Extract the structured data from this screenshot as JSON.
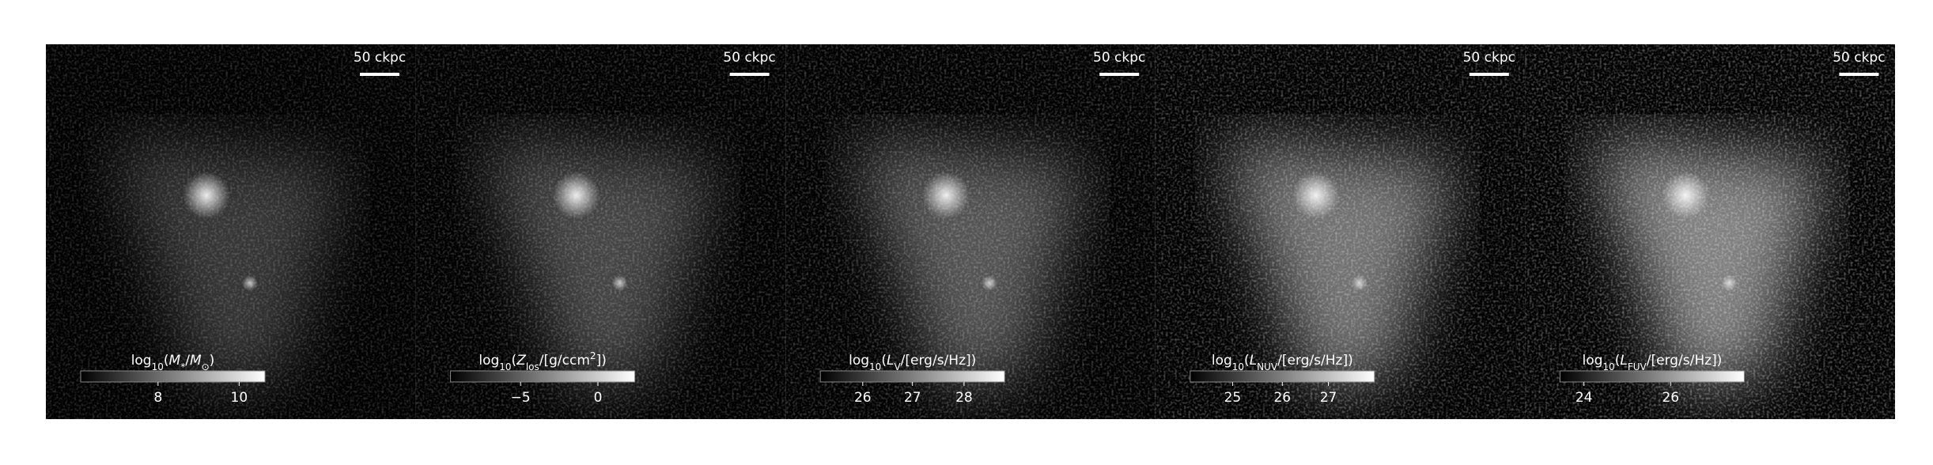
{
  "panels": [
    {
      "scale_bar": "50 ckpc",
      "colorbar": {
        "label": [
          {
            "t": "log"
          },
          {
            "t": "10",
            "sub": true
          },
          {
            "t": "("
          },
          {
            "t": "M",
            "it": true
          },
          {
            "t": "*",
            "sub": true
          },
          {
            "t": "/"
          },
          {
            "t": "M",
            "it": true
          },
          {
            "t": "⊙",
            "sub": true
          },
          {
            "t": ")"
          }
        ],
        "ticks": [
          "8",
          "10"
        ]
      }
    },
    {
      "scale_bar": "50 ckpc",
      "colorbar": {
        "label": [
          {
            "t": "log"
          },
          {
            "t": "10",
            "sub": true
          },
          {
            "t": "("
          },
          {
            "t": "Z",
            "it": true
          },
          {
            "t": "los",
            "sub": true
          },
          {
            "t": "/[g/ccm"
          },
          {
            "t": "2",
            "sup": true
          },
          {
            "t": "])"
          }
        ],
        "ticks": [
          "−5",
          "0"
        ]
      }
    },
    {
      "scale_bar": "50 ckpc",
      "colorbar": {
        "label": [
          {
            "t": "log"
          },
          {
            "t": "10",
            "sub": true
          },
          {
            "t": "("
          },
          {
            "t": "L",
            "it": true
          },
          {
            "t": "V",
            "sub": true
          },
          {
            "t": "/[erg/s/Hz])"
          }
        ],
        "ticks": [
          "26",
          "27",
          "28"
        ]
      }
    },
    {
      "scale_bar": "50 ckpc",
      "colorbar": {
        "label": [
          {
            "t": "log"
          },
          {
            "t": "10",
            "sub": true
          },
          {
            "t": "("
          },
          {
            "t": "L",
            "it": true
          },
          {
            "t": "NUV",
            "sub": true
          },
          {
            "t": "/[erg/s/Hz])"
          }
        ],
        "ticks": [
          "25",
          "26",
          "27"
        ]
      }
    },
    {
      "scale_bar": "50 ckpc",
      "colorbar": {
        "label": [
          {
            "t": "log"
          },
          {
            "t": "10",
            "sub": true
          },
          {
            "t": "("
          },
          {
            "t": "L",
            "it": true
          },
          {
            "t": "FUV",
            "sub": true
          },
          {
            "t": "/[erg/s/Hz])"
          }
        ],
        "ticks": [
          "24",
          "26"
        ]
      }
    }
  ]
}
